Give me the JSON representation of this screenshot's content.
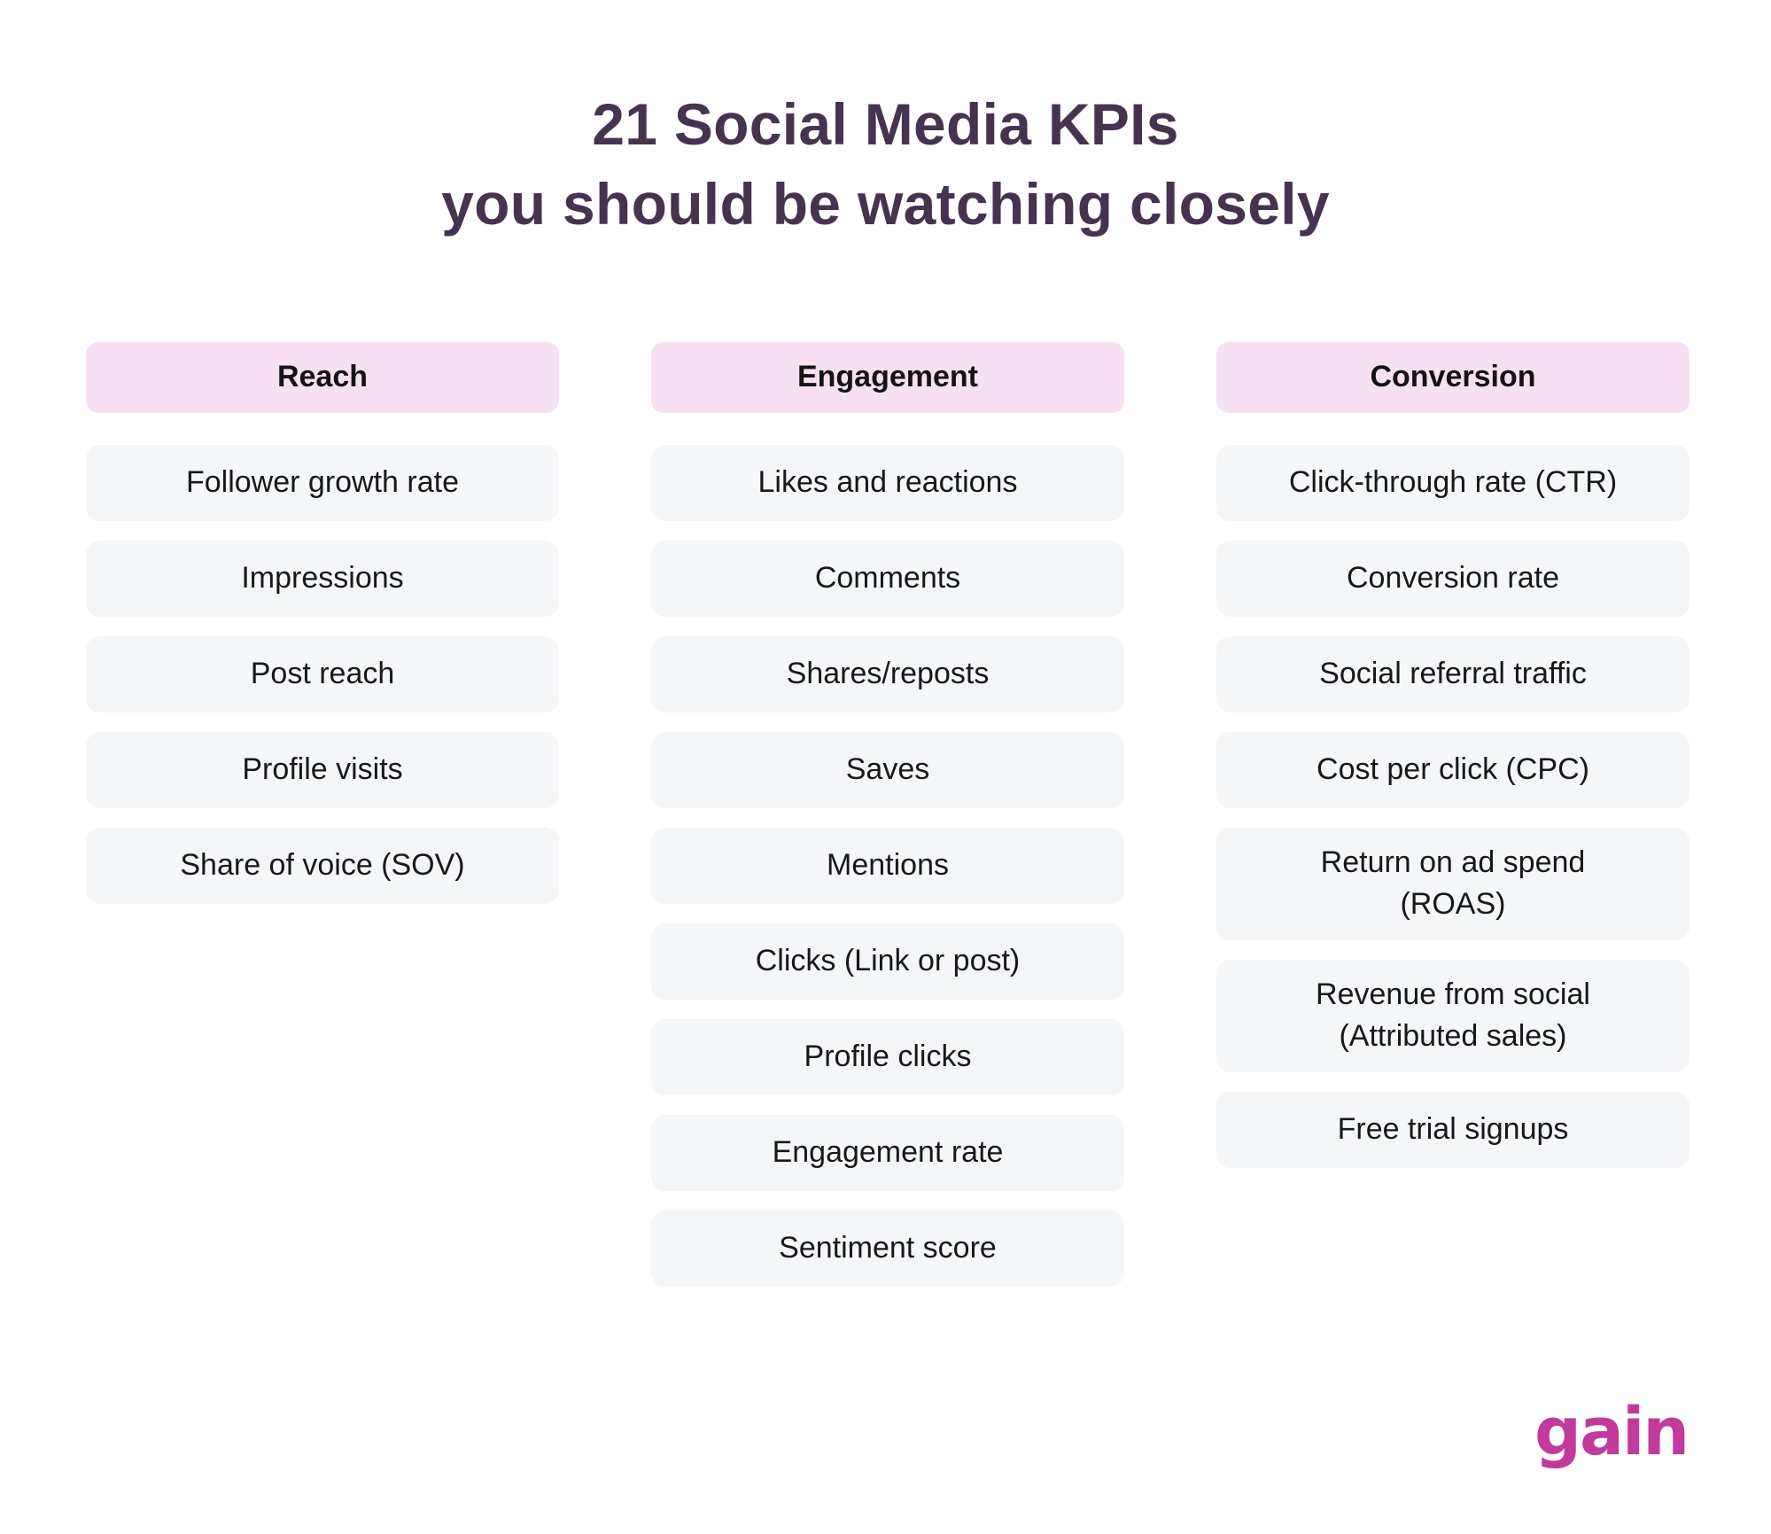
{
  "title": {
    "line1": "21 Social Media KPIs",
    "line2": "you should be watching closely"
  },
  "columns": [
    {
      "header": "Reach",
      "items": [
        "Follower growth rate",
        "Impressions",
        "Post reach",
        "Profile visits",
        "Share of voice (SOV)"
      ]
    },
    {
      "header": "Engagement",
      "items": [
        "Likes and reactions",
        "Comments",
        "Shares/reposts",
        "Saves",
        "Mentions",
        "Clicks (Link or post)",
        "Profile clicks",
        "Engagement rate",
        "Sentiment score"
      ]
    },
    {
      "header": "Conversion",
      "items": [
        "Click-through rate (CTR)",
        "Conversion rate",
        "Social referral traffic",
        "Cost per click (CPC)",
        "Return on ad spend\n(ROAS)",
        "Revenue from social\n(Attributed sales)",
        "Free trial signups"
      ]
    }
  ],
  "logo": {
    "text": "gain"
  },
  "colors": {
    "background": "#ffffff",
    "title_text": "#463350",
    "header_bg": "#f6e0f1",
    "header_text": "#141414",
    "item_bg": "#f5f6f8",
    "item_text": "#17181a",
    "logo": "#c23a9c"
  }
}
